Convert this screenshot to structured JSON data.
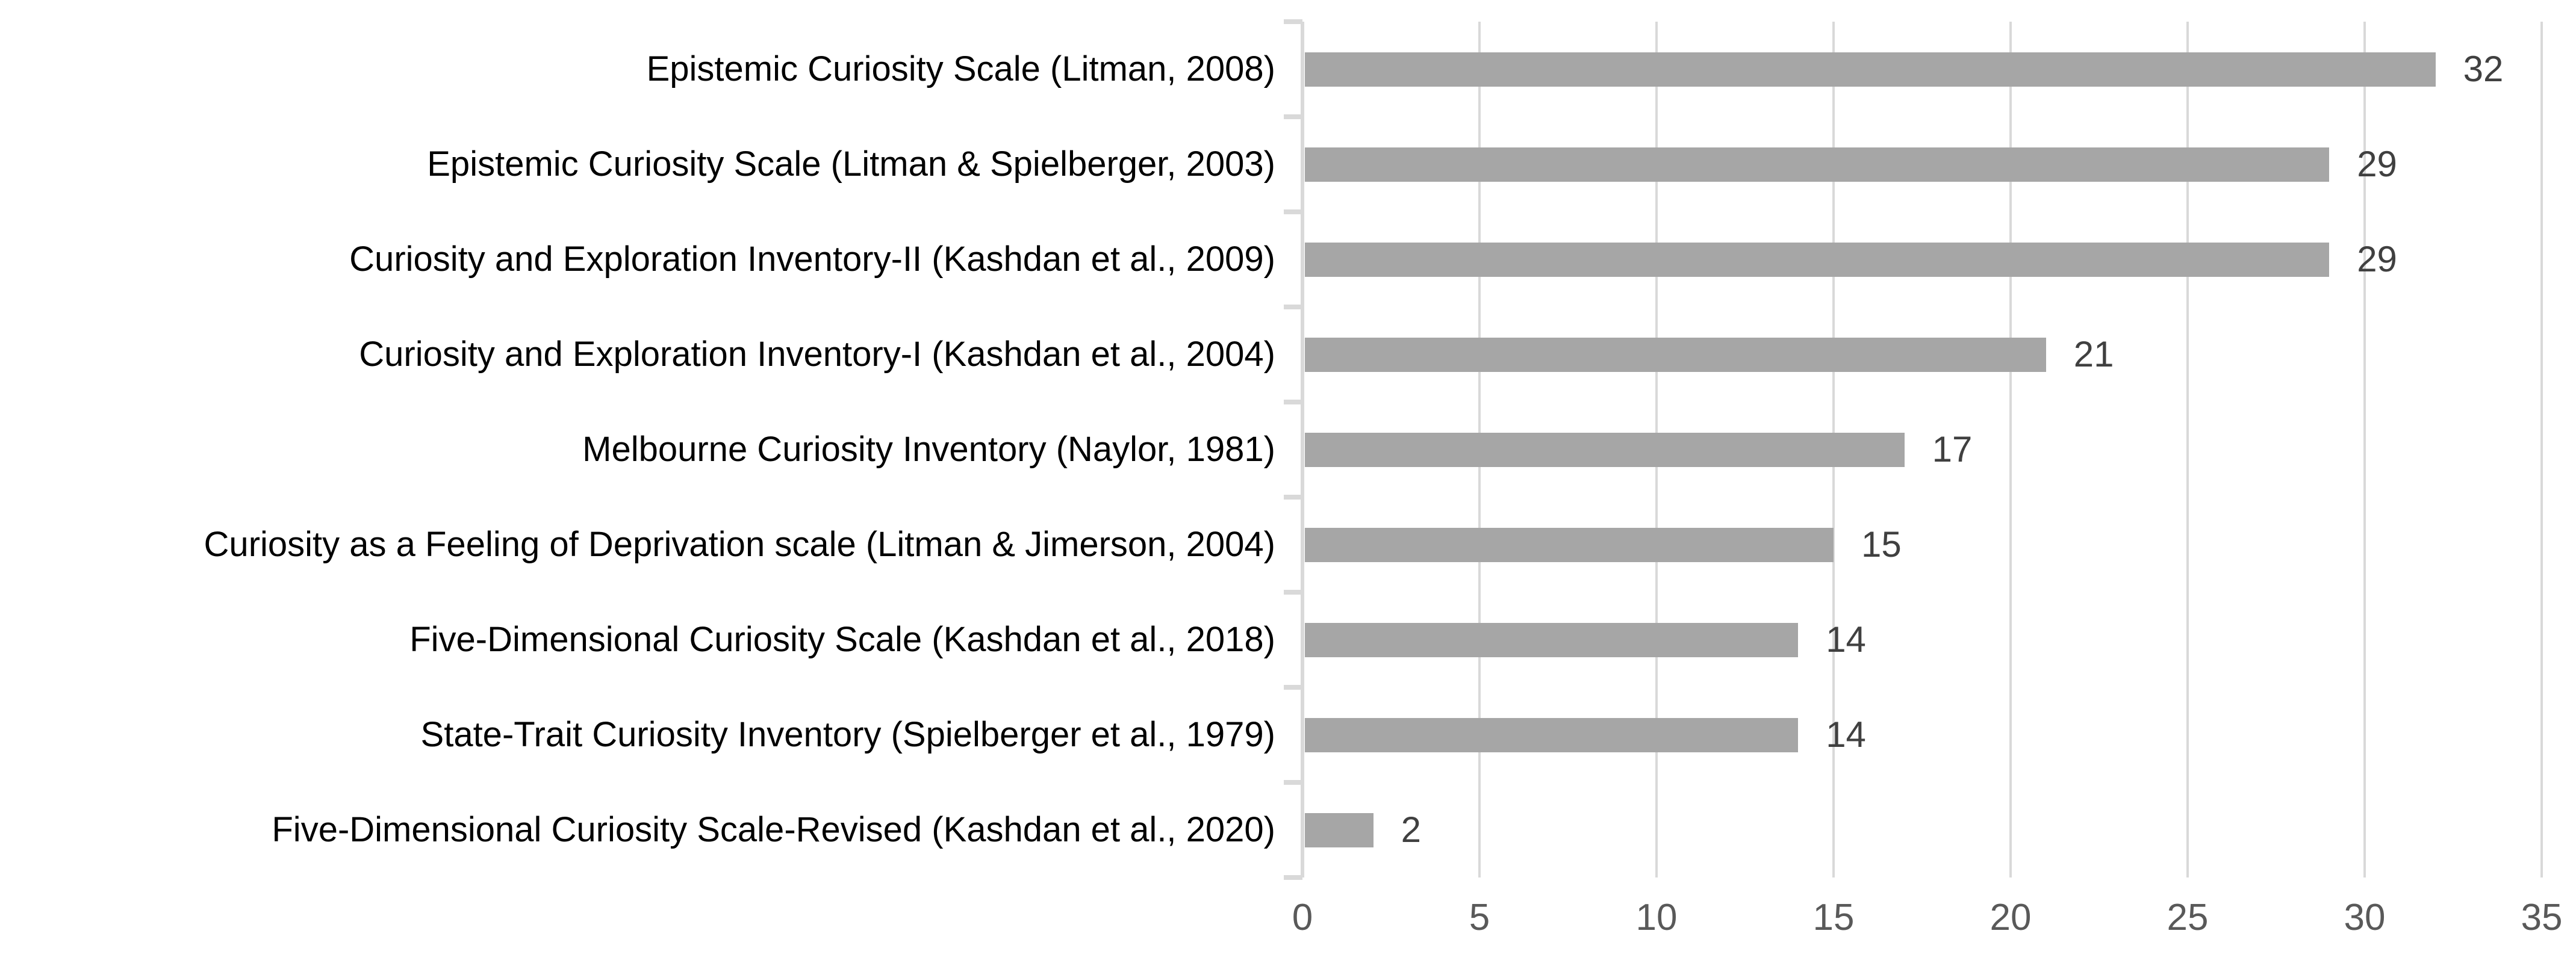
{
  "chart_data": {
    "type": "bar",
    "orientation": "horizontal",
    "title": "",
    "xlabel": "",
    "ylabel": "",
    "categories": [
      "Epistemic Curiosity Scale (Litman, 2008)",
      "Epistemic Curiosity Scale (Litman & Spielberger, 2003)",
      "Curiosity and Exploration Inventory-II (Kashdan et al., 2009)",
      "Curiosity and Exploration Inventory-I (Kashdan et al., 2004)",
      "Melbourne Curiosity Inventory (Naylor, 1981)",
      "Curiosity as a Feeling of Deprivation scale (Litman & Jimerson, 2004)",
      "Five-Dimensional Curiosity Scale (Kashdan et al., 2018)",
      "State-Trait Curiosity Inventory (Spielberger et al., 1979)",
      "Five-Dimensional Curiosity Scale-Revised (Kashdan et al., 2020)"
    ],
    "values": [
      32,
      29,
      29,
      21,
      17,
      15,
      14,
      14,
      2
    ],
    "value_labels": [
      "32",
      "29",
      "29",
      "21",
      "17",
      "15",
      "14",
      "14",
      "2"
    ],
    "xlim": [
      0,
      35
    ],
    "xticks": [
      0,
      5,
      10,
      15,
      20,
      25,
      30,
      35
    ],
    "grid": "vertical-only",
    "legend": "none",
    "data_labels": "outside-end",
    "colors": {
      "bar": "#a6a6a6",
      "gridline": "#d9d9d9",
      "axis_line": "#d9d9d9",
      "tick_label": "#595959",
      "value_label": "#404040",
      "category_label": "#000000",
      "background": "#ffffff"
    }
  }
}
